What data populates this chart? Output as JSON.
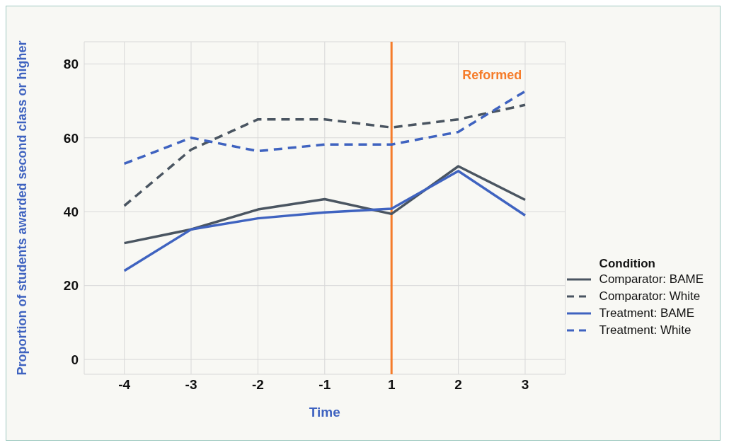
{
  "chart_data": {
    "type": "line",
    "xlabel": "Time",
    "ylabel": "Proportion of students awarded second class or higher",
    "legend_title": "Condition",
    "categories": [
      "-4",
      "-3",
      "-2",
      "-1",
      "1",
      "2",
      "3"
    ],
    "series": [
      {
        "name": "Comparator: BAME",
        "color": "#4a5561",
        "line_style": "solid",
        "values": [
          31.5,
          35.2,
          40.6,
          43.4,
          39.4,
          52.3,
          43.2
        ]
      },
      {
        "name": "Comparator: White",
        "color": "#4a5561",
        "line_style": "dashed",
        "values": [
          41.6,
          56.8,
          65,
          65,
          62.8,
          65,
          68.9
        ]
      },
      {
        "name": "Treatment: BAME",
        "color": "#3f63c0",
        "line_style": "solid",
        "values": [
          24,
          35.2,
          38.2,
          39.8,
          40.8,
          51,
          39
        ]
      },
      {
        "name": "Treatment: White",
        "color": "#3f63c0",
        "line_style": "dashed",
        "values": [
          53,
          60,
          56.4,
          58.2,
          58.2,
          61.6,
          72.6
        ]
      }
    ],
    "ylim": [
      -4,
      86
    ],
    "yticks": [
      0,
      20,
      40,
      60,
      80
    ],
    "grid": true,
    "legend": "right",
    "marker": "none",
    "ref_lines": [
      {
        "axis": "x",
        "value": "1",
        "label": "Reformed",
        "color": "#f57c2a",
        "line_style": "solid"
      }
    ]
  }
}
